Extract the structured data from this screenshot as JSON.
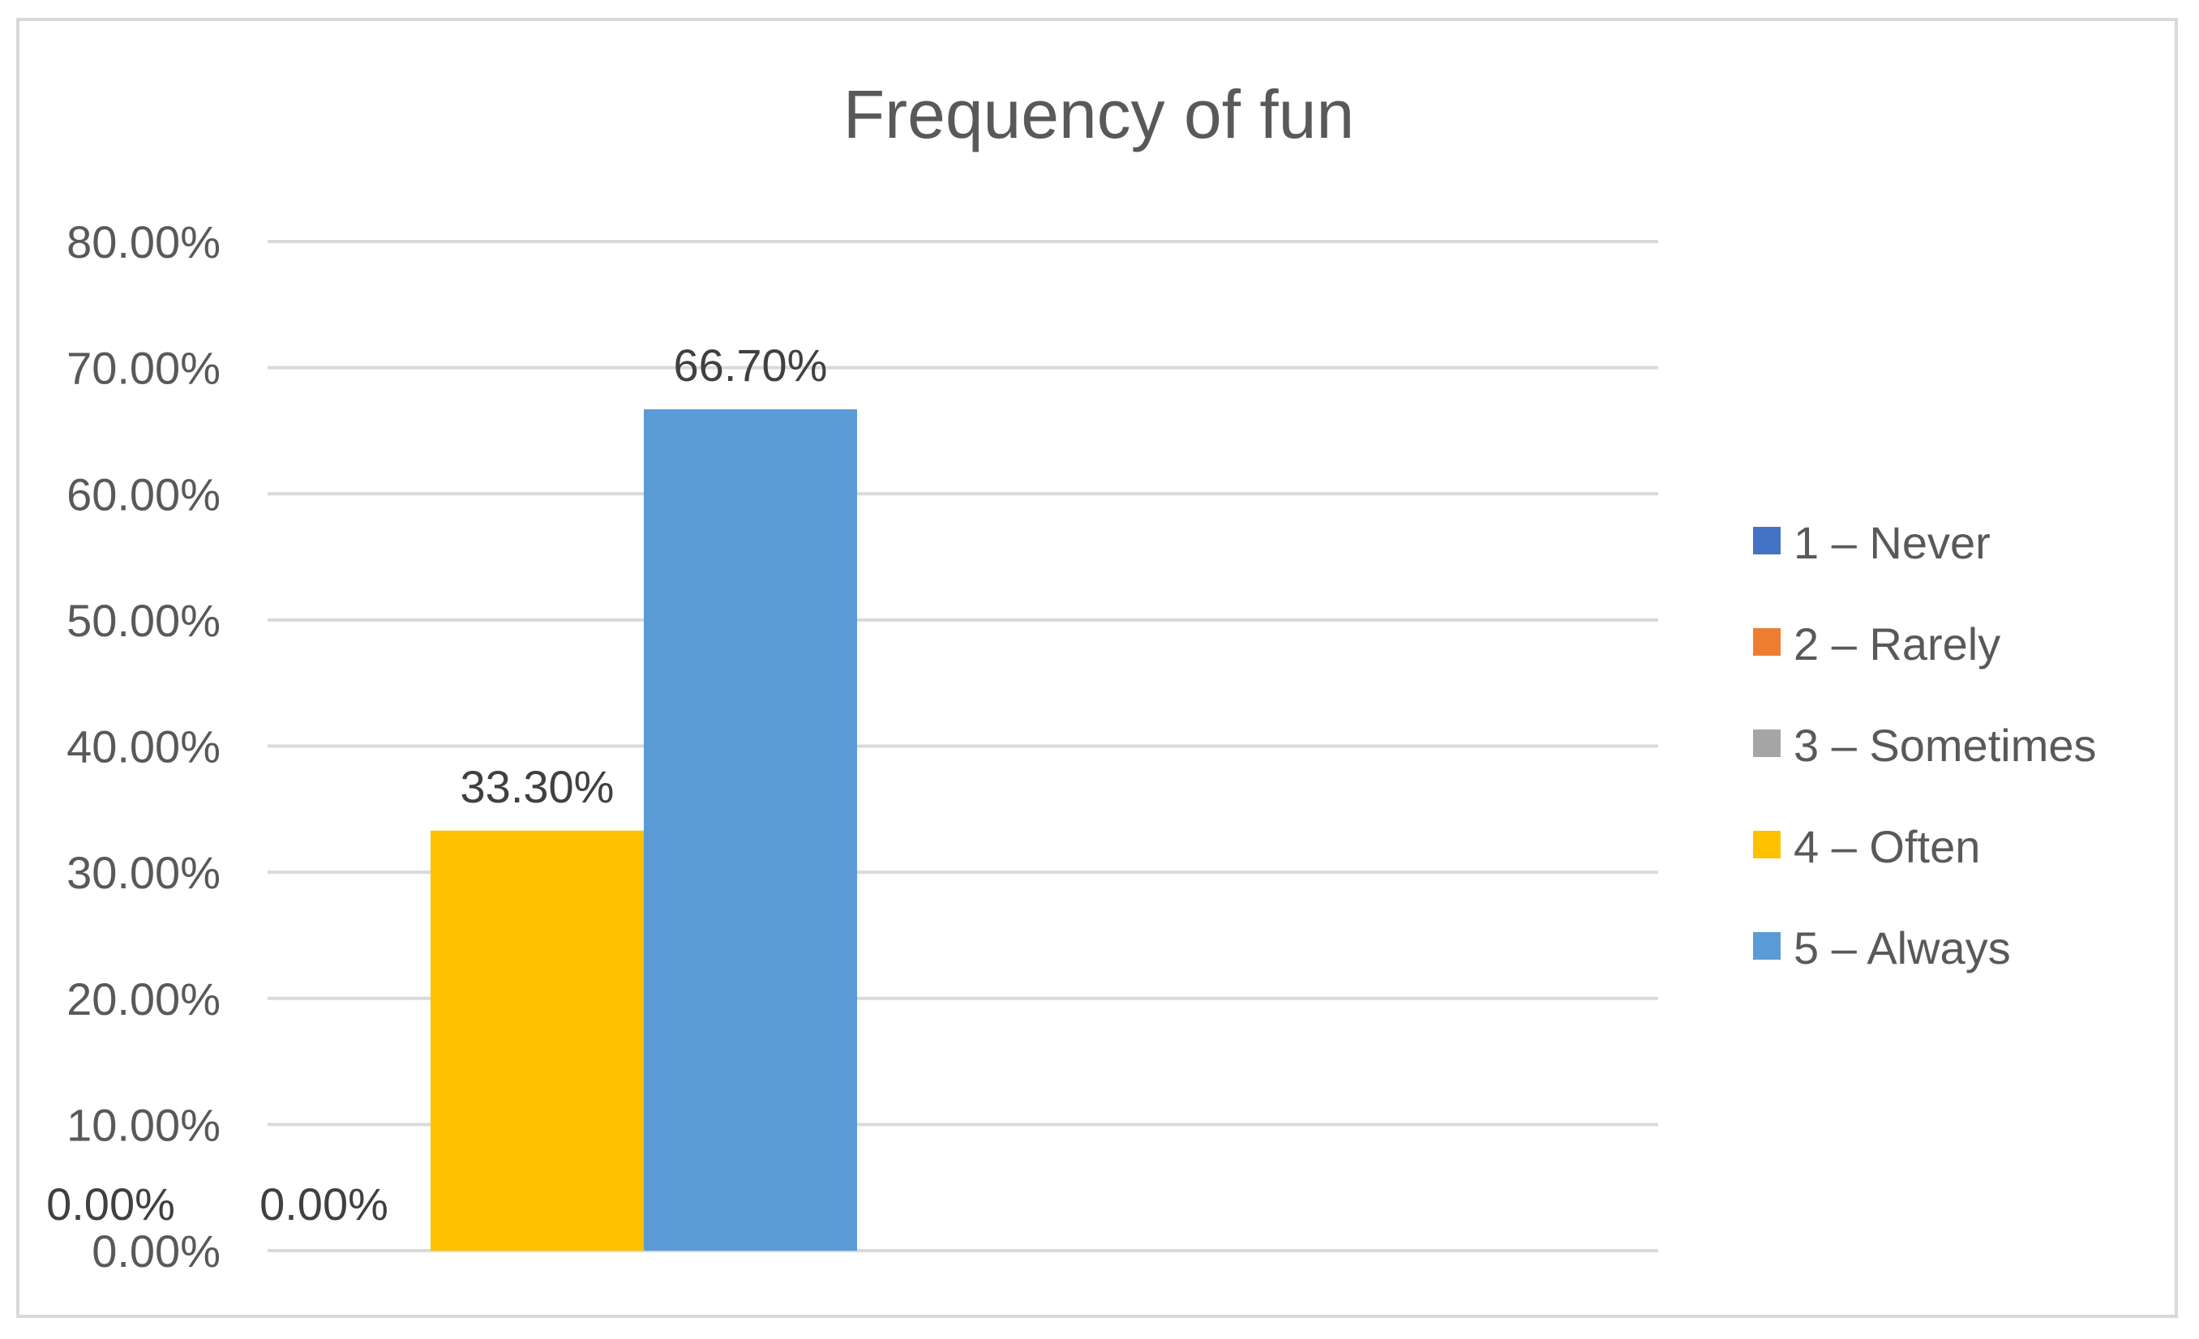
{
  "chart_data": {
    "type": "bar",
    "title": "Frequency of fun",
    "xlabel": "",
    "ylabel": "",
    "ylim": [
      0,
      80
    ],
    "yticks": [
      "0.00%",
      "10.00%",
      "20.00%",
      "30.00%",
      "40.00%",
      "50.00%",
      "60.00%",
      "70.00%",
      "80.00%"
    ],
    "grid": true,
    "legend_position": "right",
    "series": [
      {
        "name": "1 – Never",
        "value": 0.0,
        "label": "0.00%",
        "color": "#4472c4"
      },
      {
        "name": "2 – Rarely",
        "value": 0.0,
        "label": "0.00%",
        "color": "#ed7d31"
      },
      {
        "name": "3 – Sometimes",
        "value": 0.0,
        "label": "0.00%",
        "color": "#a5a5a5"
      },
      {
        "name": "4 – Often",
        "value": 33.3,
        "label": "33.30%",
        "color": "#ffc000"
      },
      {
        "name": "5 – Always",
        "value": 66.7,
        "label": "66.70%",
        "color": "#5b9bd5"
      }
    ]
  }
}
